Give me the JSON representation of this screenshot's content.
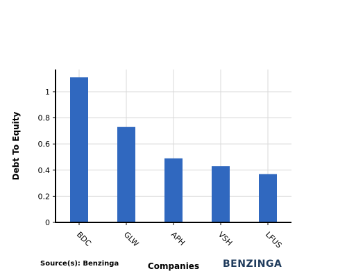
{
  "chart_data": {
    "type": "bar",
    "title": "",
    "xlabel": "Companies",
    "ylabel": "Debt To Equity",
    "categories": [
      "BDC",
      "GLW",
      "APH",
      "VSH",
      "LFUS"
    ],
    "values": [
      1.11,
      0.73,
      0.49,
      0.43,
      0.37
    ],
    "ylim": [
      0,
      1.17
    ],
    "yticks": [
      0,
      0.2,
      0.4,
      0.6,
      0.8,
      1
    ],
    "ytick_labels": [
      "0",
      "0.2",
      "0.4",
      "0.6",
      "0.8",
      "1"
    ],
    "grid": true,
    "bar_color": "#3068bf",
    "grid_color": "#d9d9d9"
  },
  "footer": {
    "source": "Source(s): Benzinga",
    "brand": "BENZINGA",
    "brand_color": "#1f3b5c"
  }
}
